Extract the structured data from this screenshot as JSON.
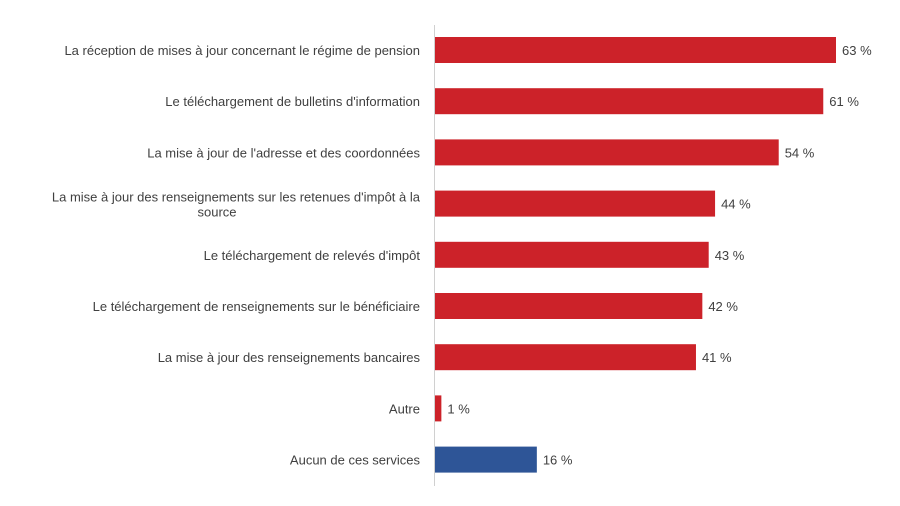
{
  "chart_data": {
    "type": "bar",
    "orientation": "horizontal",
    "categories": [
      "La réception de mises à jour concernant le régime de pension",
      "Le téléchargement de bulletins d'information",
      "La mise à jour de l'adresse et des coordonnées",
      "La mise à jour des renseignements sur les retenues d'impôt à la source",
      "Le téléchargement de relevés d'impôt",
      "Le téléchargement de renseignements sur le bénéficiaire",
      "La mise à jour des renseignements bancaires",
      "Autre",
      "Aucun de ces services"
    ],
    "values": [
      63,
      61,
      54,
      44,
      43,
      42,
      41,
      1,
      16
    ],
    "value_labels": [
      "63 %",
      "61 %",
      "54 %",
      "44 %",
      "43 %",
      "42 %",
      "41 %",
      "1 %",
      "16 %"
    ],
    "bar_colors": [
      "#cc2229",
      "#cc2229",
      "#cc2229",
      "#cc2229",
      "#cc2229",
      "#cc2229",
      "#cc2229",
      "#cc2229",
      "#2e5597"
    ],
    "xlim": [
      0,
      70
    ],
    "grid": false,
    "title": "",
    "xlabel": "",
    "ylabel": ""
  }
}
